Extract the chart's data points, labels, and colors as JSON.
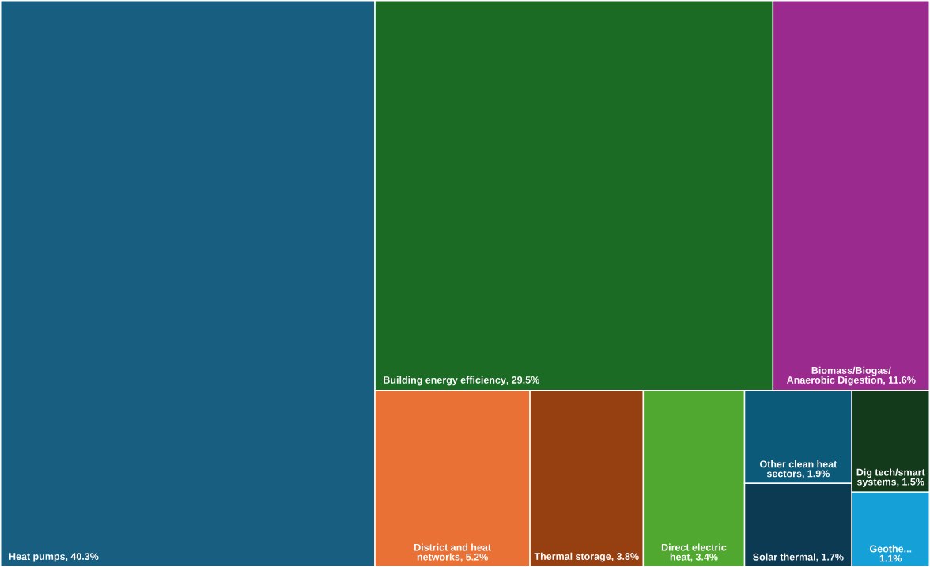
{
  "chart_data": {
    "type": "other",
    "categories": [
      "Heat pumps",
      "Building energy efficiency",
      "Biomass/Biogas/Anaerobic Digestion",
      "District and heat networks",
      "Thermal storage",
      "Direct electric heat",
      "Other clean heat sectors",
      "Solar thermal",
      "Dig tech/smart systems",
      "Geothe..."
    ],
    "values": [
      40.3,
      29.5,
      11.6,
      5.2,
      3.8,
      3.4,
      1.9,
      1.7,
      1.5,
      1.1
    ],
    "value_labels": [
      ", 40.3%",
      ", 29.5%",
      ", 11.6%",
      ", 5.2%",
      ", 3.8%",
      ", 3.4%",
      ", 1.9%",
      ", 1.7%",
      ", 1.5%",
      "1.1%"
    ],
    "colors": [
      "#175e80",
      "#1c6b25",
      "#9b2a8e",
      "#ea7135",
      "#963f10",
      "#50a831",
      "#0c5a7a",
      "#0b3a52",
      "#123a1b",
      "#16a0d8"
    ]
  }
}
